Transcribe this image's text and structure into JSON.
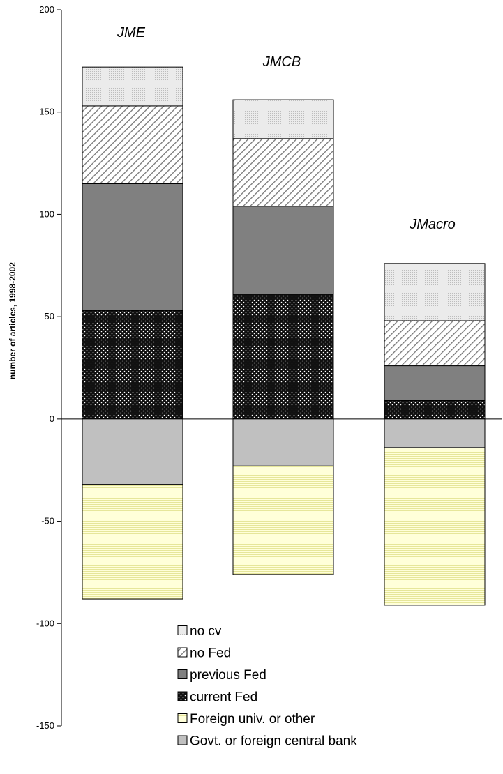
{
  "chart_data": {
    "type": "bar",
    "stacked": true,
    "title": "",
    "xlabel": "",
    "ylabel": "number of articles, 1998-2002",
    "ylim": [
      -150,
      200
    ],
    "yticks": [
      200,
      150,
      100,
      50,
      0,
      -50,
      -100,
      -150
    ],
    "categories": [
      "JME",
      "JMCB",
      "JMacro"
    ],
    "series": [
      {
        "name": "current Fed",
        "values": [
          53,
          61,
          9
        ],
        "color": "#111111",
        "pattern": "dots-white"
      },
      {
        "name": "previous Fed",
        "values": [
          62,
          43,
          17
        ],
        "color": "#808080",
        "pattern": "solid"
      },
      {
        "name": "no Fed",
        "values": [
          38,
          33,
          22
        ],
        "color": "#ffffff",
        "pattern": "diagonal-hatch"
      },
      {
        "name": "no cv",
        "values": [
          19,
          19,
          28
        ],
        "color": "#e4e4e4",
        "pattern": "fine-dots"
      },
      {
        "name": "Govt. or foreign central bank",
        "values": [
          -32,
          -23,
          -14
        ],
        "color": "#c0c0c0",
        "pattern": "solid"
      },
      {
        "name": "Foreign univ. or other",
        "values": [
          -56,
          -53,
          -77
        ],
        "color": "#ffffcc",
        "pattern": "horizontal-lines"
      }
    ],
    "legend": {
      "position": "bottom-center",
      "order": [
        "no cv",
        "no Fed",
        "previous Fed",
        "current Fed",
        "Foreign univ. or other",
        "Govt. or foreign central bank"
      ]
    },
    "grid": false
  }
}
